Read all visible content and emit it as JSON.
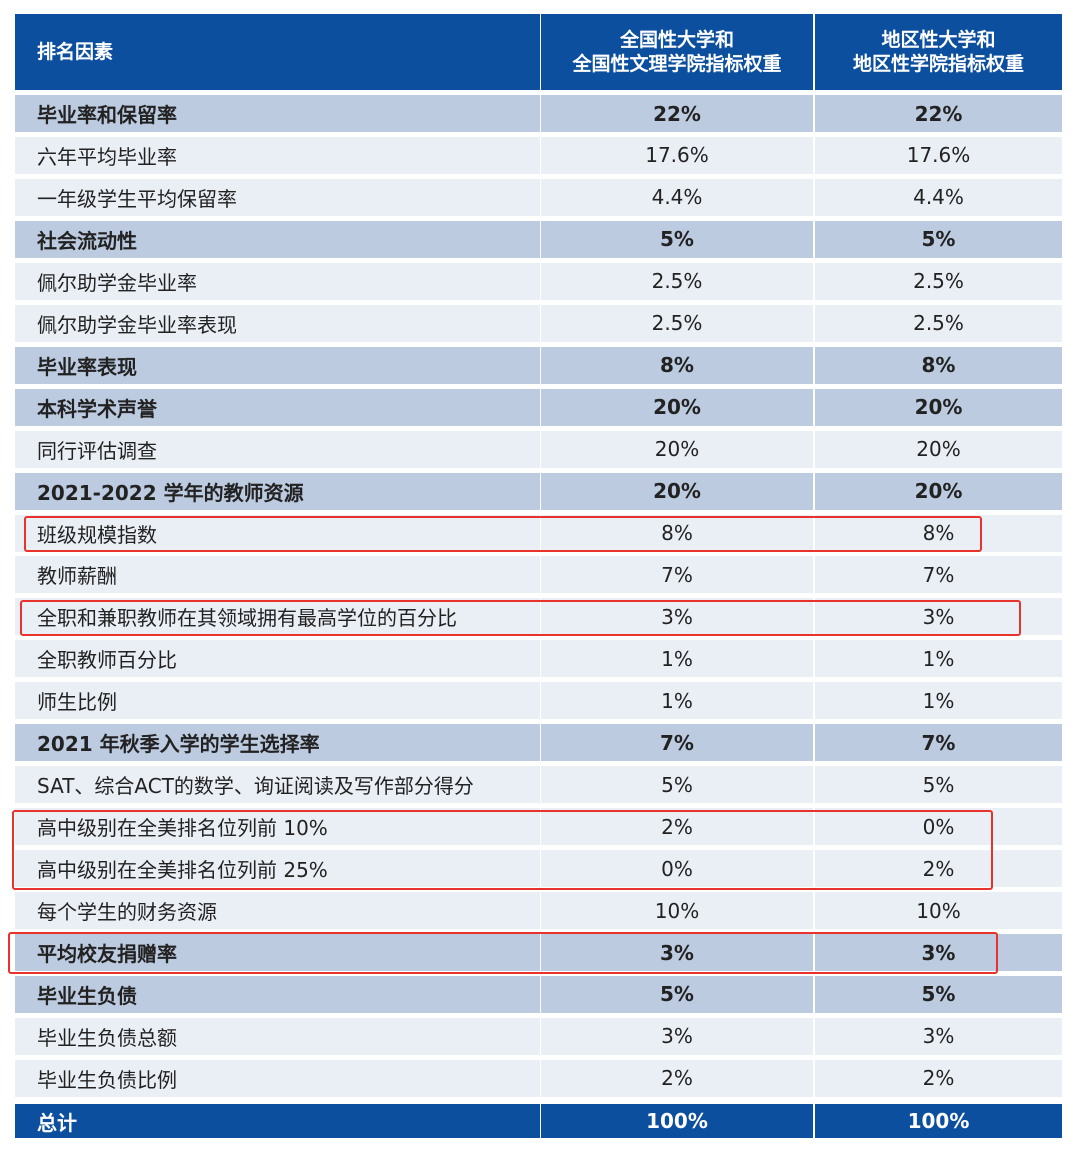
{
  "table": {
    "header": [
      "排名因素",
      "全国性大学和\n全国性文理学院指标权重",
      "地区性大学和\n地区性学院指标权重"
    ],
    "rows": [
      [
        "毕业率和保留率",
        "22%",
        "22%"
      ],
      [
        "六年平均毕业率",
        "17.6%",
        "17.6%"
      ],
      [
        "一年级学生平均保留率",
        "4.4%",
        "4.4%"
      ],
      [
        "社会流动性",
        "5%",
        "5%"
      ],
      [
        "佩尔助学金毕业率",
        "2.5%",
        "2.5%"
      ],
      [
        "佩尔助学金毕业率表现",
        "2.5%",
        "2.5%"
      ],
      [
        "毕业率表现",
        "8%",
        "8%"
      ],
      [
        "本科学术声誉",
        "20%",
        "20%"
      ],
      [
        "同行评估调查",
        "20%",
        "20%"
      ],
      [
        "2021-2022 学年的教师资源",
        "20%",
        "20%"
      ],
      [
        "班级规模指数",
        "8%",
        "8%"
      ],
      [
        "教师薪酬",
        "7%",
        "7%"
      ],
      [
        "全职和兼职教师在其领域拥有最高学位的百分比",
        "3%",
        "3%"
      ],
      [
        "全职教师百分比",
        "1%",
        "1%"
      ],
      [
        "师生比例",
        "1%",
        "1%"
      ],
      [
        "2021 年秋季入学的学生选择率",
        "7%",
        "7%"
      ],
      [
        "SAT、综合ACT的数学、询证阅读及写作部分得分",
        "5%",
        "5%"
      ],
      [
        "高中级别在全美排名位列前 10%",
        "2%",
        "0%"
      ],
      [
        "高中级别在全美排名位列前 25%",
        "0%",
        "2%"
      ],
      [
        "每个学生的财务资源",
        "10%",
        "10%"
      ],
      [
        "平均校友捐赠率",
        "3%",
        "3%"
      ],
      [
        "毕业生负债",
        "5%",
        "5%"
      ],
      [
        "毕业生负债总额",
        "3%",
        "3%"
      ],
      [
        "毕业生负债比例",
        "2%",
        "2%"
      ]
    ],
    "total": [
      "总计",
      "100%",
      "100%"
    ]
  }
}
